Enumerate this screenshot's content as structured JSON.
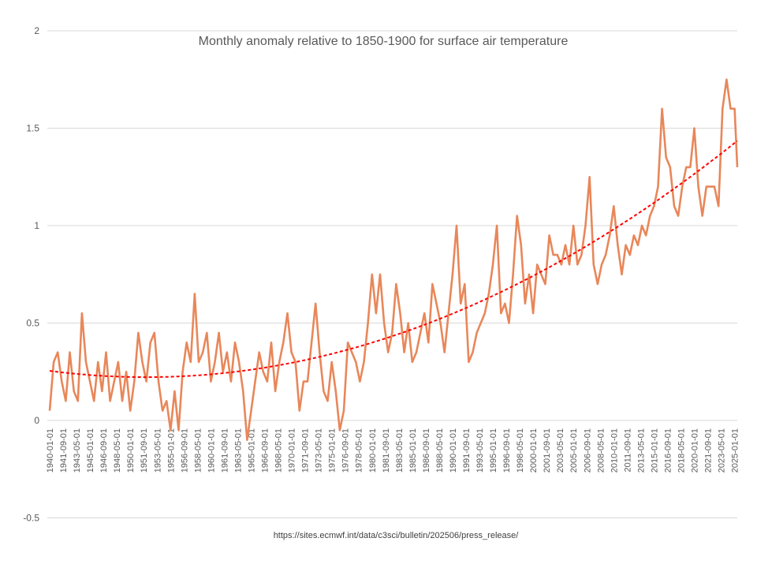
{
  "chart_data": {
    "type": "line",
    "title": "Monthly anomaly relative to 1850-1900 for surface air temperature",
    "source_note": "https://sites.ecmwf.int/data/c3sci/bulletin/202506/press_release/",
    "xlabel": "",
    "ylabel": "",
    "ylim": [
      -0.5,
      2
    ],
    "yticks": [
      -0.5,
      0,
      0.5,
      1,
      1.5,
      2
    ],
    "ytick_labels": [
      "-0.5",
      "0",
      "0.5",
      "1",
      "1.5",
      "2"
    ],
    "xlim": [
      "1940-01",
      "2025-05"
    ],
    "xtick_step_months": 20,
    "grid": true,
    "legend": "none",
    "series_color": "#E8875A",
    "trend_color": "#FF0000",
    "trendline": "polynomial order 2, dashed",
    "series": [
      {
        "sampling_note_x_is_month": true,
        "x": [
          "1940-01",
          "1940-07",
          "1941-01",
          "1941-07",
          "1942-01",
          "1942-07",
          "1943-01",
          "1943-07",
          "1944-01",
          "1944-07",
          "1945-01",
          "1945-07",
          "1946-01",
          "1946-07",
          "1947-01",
          "1947-07",
          "1948-01",
          "1948-07",
          "1949-01",
          "1949-07",
          "1950-01",
          "1950-07",
          "1951-01",
          "1951-07",
          "1952-01",
          "1952-07",
          "1953-01",
          "1953-07",
          "1954-01",
          "1954-07",
          "1955-01",
          "1955-07",
          "1956-01",
          "1956-07",
          "1957-01",
          "1957-07",
          "1958-01",
          "1958-07",
          "1959-01",
          "1959-07",
          "1960-01",
          "1960-07",
          "1961-01",
          "1961-07",
          "1962-01",
          "1962-07",
          "1963-01",
          "1963-07",
          "1964-01",
          "1964-07",
          "1965-01",
          "1965-07",
          "1966-01",
          "1966-07",
          "1967-01",
          "1967-07",
          "1968-01",
          "1968-07",
          "1969-01",
          "1969-07",
          "1970-01",
          "1970-07",
          "1971-01",
          "1971-07",
          "1972-01",
          "1972-07",
          "1973-01",
          "1973-07",
          "1974-01",
          "1974-07",
          "1975-01",
          "1975-07",
          "1976-01",
          "1976-07",
          "1977-01",
          "1977-07",
          "1978-01",
          "1978-07",
          "1979-01",
          "1979-07",
          "1980-01",
          "1980-07",
          "1981-01",
          "1981-07",
          "1982-01",
          "1982-07",
          "1983-01",
          "1983-07",
          "1984-01",
          "1984-07",
          "1985-01",
          "1985-07",
          "1986-01",
          "1986-07",
          "1987-01",
          "1987-07",
          "1988-01",
          "1988-07",
          "1989-01",
          "1989-07",
          "1990-01",
          "1990-07",
          "1991-01",
          "1991-07",
          "1992-01",
          "1992-07",
          "1993-01",
          "1993-07",
          "1994-01",
          "1994-07",
          "1995-01",
          "1995-07",
          "1996-01",
          "1996-07",
          "1997-01",
          "1997-07",
          "1998-01",
          "1998-07",
          "1999-01",
          "1999-07",
          "2000-01",
          "2000-07",
          "2001-01",
          "2001-07",
          "2002-01",
          "2002-07",
          "2003-01",
          "2003-07",
          "2004-01",
          "2004-07",
          "2005-01",
          "2005-07",
          "2006-01",
          "2006-07",
          "2007-01",
          "2007-07",
          "2008-01",
          "2008-07",
          "2009-01",
          "2009-07",
          "2010-01",
          "2010-07",
          "2011-01",
          "2011-07",
          "2012-01",
          "2012-07",
          "2013-01",
          "2013-07",
          "2014-01",
          "2014-07",
          "2015-01",
          "2015-07",
          "2016-01",
          "2016-07",
          "2017-01",
          "2017-07",
          "2018-01",
          "2018-07",
          "2019-01",
          "2019-07",
          "2020-01",
          "2020-07",
          "2021-01",
          "2021-07",
          "2022-01",
          "2022-07",
          "2023-01",
          "2023-07",
          "2024-01",
          "2024-07",
          "2025-01",
          "2025-05"
        ],
        "y": [
          0.05,
          0.3,
          0.35,
          0.2,
          0.1,
          0.35,
          0.15,
          0.1,
          0.55,
          0.3,
          0.2,
          0.1,
          0.3,
          0.15,
          0.35,
          0.1,
          0.2,
          0.3,
          0.1,
          0.25,
          0.05,
          0.2,
          0.45,
          0.3,
          0.2,
          0.4,
          0.45,
          0.2,
          0.05,
          0.1,
          -0.05,
          0.15,
          -0.05,
          0.25,
          0.4,
          0.3,
          0.65,
          0.3,
          0.35,
          0.45,
          0.2,
          0.3,
          0.45,
          0.25,
          0.35,
          0.2,
          0.4,
          0.3,
          0.15,
          -0.1,
          0.05,
          0.2,
          0.35,
          0.25,
          0.2,
          0.4,
          0.15,
          0.3,
          0.4,
          0.55,
          0.35,
          0.3,
          0.05,
          0.2,
          0.2,
          0.4,
          0.6,
          0.35,
          0.15,
          0.1,
          0.3,
          0.15,
          -0.05,
          0.05,
          0.4,
          0.35,
          0.3,
          0.2,
          0.3,
          0.5,
          0.75,
          0.55,
          0.75,
          0.5,
          0.35,
          0.45,
          0.7,
          0.55,
          0.35,
          0.5,
          0.3,
          0.35,
          0.45,
          0.55,
          0.4,
          0.7,
          0.6,
          0.5,
          0.35,
          0.55,
          0.75,
          1.0,
          0.6,
          0.7,
          0.3,
          0.35,
          0.45,
          0.5,
          0.55,
          0.65,
          0.8,
          1.0,
          0.55,
          0.6,
          0.5,
          0.75,
          1.05,
          0.9,
          0.6,
          0.75,
          0.55,
          0.8,
          0.75,
          0.7,
          0.95,
          0.85,
          0.85,
          0.8,
          0.9,
          0.8,
          1.0,
          0.8,
          0.85,
          1.0,
          1.25,
          0.8,
          0.7,
          0.8,
          0.85,
          0.95,
          1.1,
          0.9,
          0.75,
          0.9,
          0.85,
          0.95,
          0.9,
          1.0,
          0.95,
          1.05,
          1.1,
          1.2,
          1.6,
          1.35,
          1.3,
          1.1,
          1.05,
          1.2,
          1.3,
          1.3,
          1.5,
          1.2,
          1.05,
          1.2,
          1.2,
          1.2,
          1.1,
          1.6,
          1.75,
          1.6,
          1.6,
          1.3
        ]
      }
    ]
  }
}
